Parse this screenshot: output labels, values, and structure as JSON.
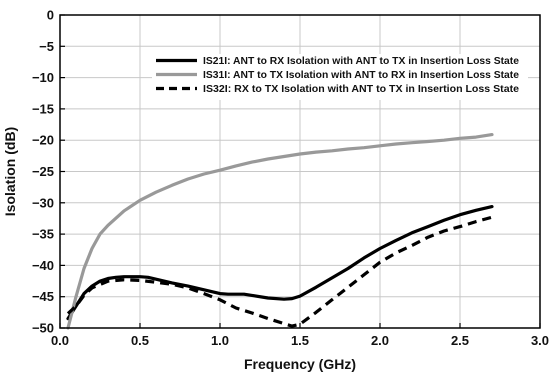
{
  "chart_data": {
    "type": "line",
    "title": "",
    "xlabel": "Frequency (GHz)",
    "ylabel": "Isolation (dB)",
    "xlim": [
      0.0,
      3.0
    ],
    "ylim": [
      -50,
      0
    ],
    "xticks": [
      0.0,
      0.5,
      1.0,
      1.5,
      2.0,
      2.5,
      3.0
    ],
    "xtick_labels": [
      "0.0",
      "0.5",
      "1.0",
      "1.5",
      "2.0",
      "2.5",
      "3.0"
    ],
    "yticks": [
      0,
      -5,
      -10,
      -15,
      -20,
      -25,
      -30,
      -35,
      -40,
      -45,
      -50
    ],
    "ytick_labels": [
      "0",
      "−5",
      "−10",
      "−15",
      "−20",
      "−25",
      "−30",
      "−35",
      "−40",
      "−45",
      "−50"
    ],
    "grid": true,
    "legend_position": "top-right",
    "series": [
      {
        "name": "IS21I: ANT to RX Isolation with ANT to TX in Insertion Loss State",
        "color": "#000000",
        "style": "solid",
        "x": [
          0.05,
          0.1,
          0.15,
          0.2,
          0.25,
          0.3,
          0.35,
          0.4,
          0.45,
          0.5,
          0.55,
          0.6,
          0.7,
          0.8,
          0.9,
          1.0,
          1.05,
          1.1,
          1.15,
          1.2,
          1.3,
          1.4,
          1.45,
          1.5,
          1.6,
          1.7,
          1.8,
          1.9,
          2.0,
          2.1,
          2.2,
          2.3,
          2.4,
          2.5,
          2.6,
          2.7
        ],
        "y": [
          -48.5,
          -46.5,
          -44.5,
          -43.3,
          -42.5,
          -42.1,
          -41.9,
          -41.8,
          -41.8,
          -41.8,
          -41.9,
          -42.2,
          -42.8,
          -43.3,
          -43.9,
          -44.5,
          -44.6,
          -44.6,
          -44.6,
          -44.8,
          -45.2,
          -45.4,
          -45.3,
          -44.9,
          -43.5,
          -42.0,
          -40.5,
          -38.8,
          -37.3,
          -36.0,
          -34.8,
          -33.8,
          -32.8,
          -31.9,
          -31.2,
          -30.6
        ]
      },
      {
        "name": "IS31I: ANT to TX Isolation with ANT to RX in Insertion Loss State",
        "color": "#999999",
        "style": "solid",
        "x": [
          0.05,
          0.08,
          0.1,
          0.15,
          0.2,
          0.25,
          0.3,
          0.4,
          0.5,
          0.6,
          0.7,
          0.8,
          0.9,
          1.0,
          1.1,
          1.2,
          1.3,
          1.4,
          1.5,
          1.6,
          1.7,
          1.8,
          1.9,
          2.0,
          2.1,
          2.2,
          2.3,
          2.4,
          2.5,
          2.6,
          2.7
        ],
        "y": [
          -50.0,
          -47.0,
          -45.0,
          -40.5,
          -37.3,
          -35.0,
          -33.6,
          -31.3,
          -29.6,
          -28.3,
          -27.2,
          -26.2,
          -25.4,
          -24.8,
          -24.1,
          -23.5,
          -23.0,
          -22.6,
          -22.2,
          -21.9,
          -21.7,
          -21.4,
          -21.2,
          -20.9,
          -20.6,
          -20.4,
          -20.2,
          -20.0,
          -19.7,
          -19.5,
          -19.1
        ]
      },
      {
        "name": "IS32I: RX to TX Isolation with ANT to TX in Insertion Loss State",
        "color": "#000000",
        "style": "dashed",
        "x": [
          0.05,
          0.1,
          0.15,
          0.2,
          0.3,
          0.4,
          0.5,
          0.6,
          0.7,
          0.8,
          0.9,
          1.0,
          1.1,
          1.2,
          1.3,
          1.4,
          1.45,
          1.5,
          1.6,
          1.7,
          1.8,
          1.9,
          2.0,
          2.1,
          2.2,
          2.3,
          2.4,
          2.5,
          2.6,
          2.7
        ],
        "y": [
          -47.7,
          -46.5,
          -44.8,
          -43.6,
          -42.5,
          -42.3,
          -42.4,
          -42.7,
          -43.0,
          -43.6,
          -44.5,
          -45.5,
          -46.8,
          -47.6,
          -48.5,
          -49.3,
          -49.7,
          -49.4,
          -47.5,
          -45.5,
          -43.5,
          -41.5,
          -39.5,
          -38.0,
          -36.8,
          -35.5,
          -34.5,
          -33.8,
          -33.0,
          -32.3
        ]
      }
    ]
  }
}
